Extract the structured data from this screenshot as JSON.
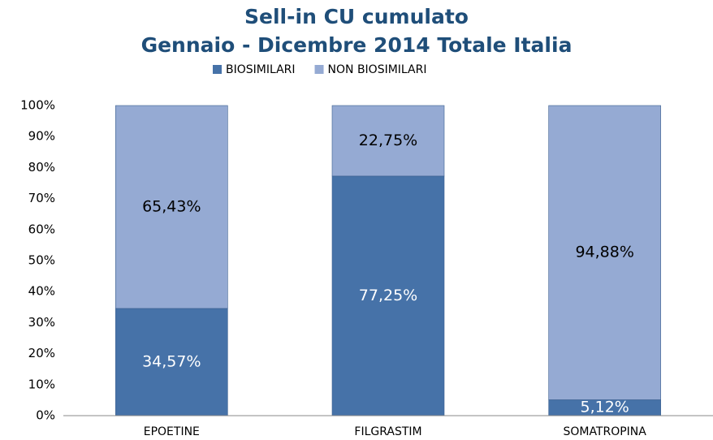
{
  "chart_data": {
    "type": "stacked_bar",
    "title": "Sell-in CU cumulato",
    "subtitle": "Gennaio - Dicembre 2014 Totale Italia",
    "categories": [
      "EPOETINE",
      "FILGRASTIM",
      "SOMATROPINA"
    ],
    "series": [
      {
        "name": "BIOSIMILARI",
        "color": "#4672a8",
        "values": [
          34.57,
          77.25,
          5.12
        ],
        "value_labels": [
          "34,57%",
          "77,25%",
          "5,12%"
        ],
        "label_color": "#ffffff"
      },
      {
        "name": "NON BIOSIMILARI",
        "color": "#95aad3",
        "values": [
          65.43,
          22.75,
          94.88
        ],
        "value_labels": [
          "65,43%",
          "22,75%",
          "94,88%"
        ],
        "label_color": "#000000"
      }
    ],
    "ylim": [
      0,
      100
    ],
    "yticks": [
      {
        "value": 0,
        "label": "0%"
      },
      {
        "value": 10,
        "label": "10%"
      },
      {
        "value": 20,
        "label": "20%"
      },
      {
        "value": 30,
        "label": "30%"
      },
      {
        "value": 40,
        "label": "40%"
      },
      {
        "value": 50,
        "label": "50%"
      },
      {
        "value": 60,
        "label": "60%"
      },
      {
        "value": 70,
        "label": "70%"
      },
      {
        "value": 80,
        "label": "80%"
      },
      {
        "value": 90,
        "label": "90%"
      },
      {
        "value": 100,
        "label": "100%"
      }
    ],
    "legend": "top",
    "grid": false
  }
}
